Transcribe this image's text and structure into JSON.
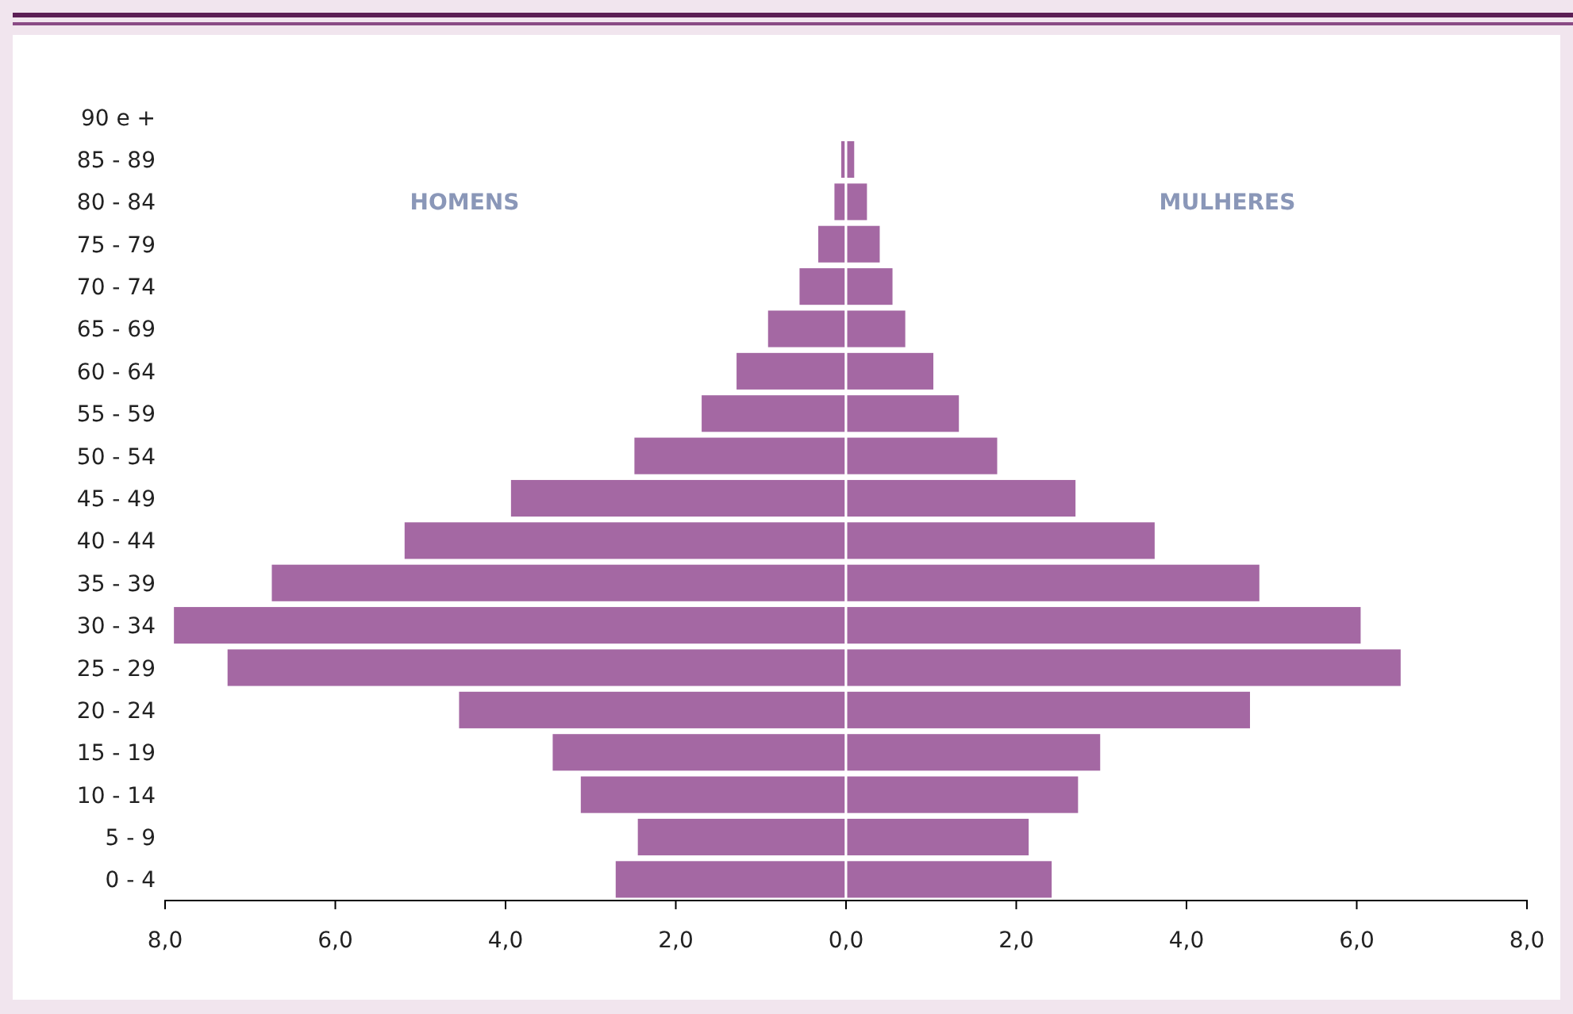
{
  "chart_data": {
    "type": "bar",
    "orientation": "horizontal",
    "stacked": true,
    "annotations": [
      "HOMENS",
      "MULHERES"
    ],
    "categories": [
      "90 e +",
      "85 - 89",
      "80 - 84",
      "75 - 79",
      "70 - 74",
      "65 - 69",
      "60 - 64",
      "55 - 59",
      "50 - 54",
      "45 - 49",
      "40 - 44",
      "35 - 39",
      "30 - 34",
      "25 - 29",
      "20 - 24",
      "15 - 19",
      "10 - 14",
      "5 - 9",
      "0 - 4"
    ],
    "series": [
      {
        "color": "#a468a3",
        "values": [
          0,
          -0.07,
          -0.15,
          -0.34,
          -0.56,
          -0.93,
          -1.3,
          -1.71,
          -2.5,
          -3.95,
          -5.2,
          -6.76,
          -7.91,
          -7.28,
          -4.56,
          -3.46,
          -3.13,
          -2.46,
          -2.72
        ]
      },
      {
        "color": "#a468a3",
        "values": [
          0,
          0.11,
          0.26,
          0.41,
          0.56,
          0.71,
          1.04,
          1.34,
          1.79,
          2.71,
          3.64,
          4.87,
          6.06,
          6.53,
          4.76,
          3.0,
          2.74,
          2.16,
          2.43
        ]
      }
    ],
    "xlim": [
      -8,
      8
    ],
    "xticks": [
      {
        "value": -8,
        "label": "8,0"
      },
      {
        "value": -6,
        "label": "6,0"
      },
      {
        "value": -4,
        "label": "4,0"
      },
      {
        "value": -2,
        "label": "2,0"
      },
      {
        "value": 0,
        "label": "0,0"
      },
      {
        "value": 2,
        "label": "2,0"
      },
      {
        "value": 4,
        "label": "4,0"
      },
      {
        "value": 6,
        "label": "6,0"
      },
      {
        "value": 8,
        "label": "8,0"
      }
    ]
  }
}
